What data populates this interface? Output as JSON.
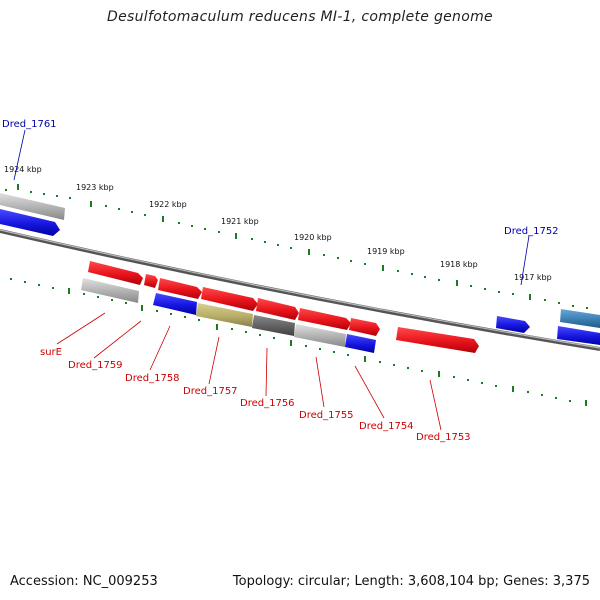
{
  "title": "Desulfotomaculum reducens MI-1, complete genome",
  "footer": {
    "accession": "Accession: NC_009253",
    "summary": "Topology: circular; Length: 3,608,104 bp; Genes: 3,375"
  },
  "colors": {
    "forward_gene": "#e8141c",
    "reverse_gene": "#1616e0",
    "gray_gene": "#b0b0b0",
    "dark_gene": "#606060",
    "olive_gene": "#b8ad68",
    "teal_gene": "#3b7fb3",
    "tick": "#1f7a1f",
    "backbone": "#7a7a7a",
    "label_red": "#cc0000",
    "label_blue": "#0000aa"
  },
  "scale_labels": [
    "1924 kbp",
    "1923 kbp",
    "1922 kbp",
    "1921 kbp",
    "1920 kbp",
    "1919 kbp",
    "1918 kbp",
    "1917 kbp"
  ],
  "gene_labels_top": [
    "Dred_1761",
    "Dred_1752"
  ],
  "gene_labels_bottom": [
    "surE",
    "Dred_1759",
    "Dred_1758",
    "Dred_1757",
    "Dred_1756",
    "Dred_1755",
    "Dred_1754",
    "Dred_1753"
  ]
}
